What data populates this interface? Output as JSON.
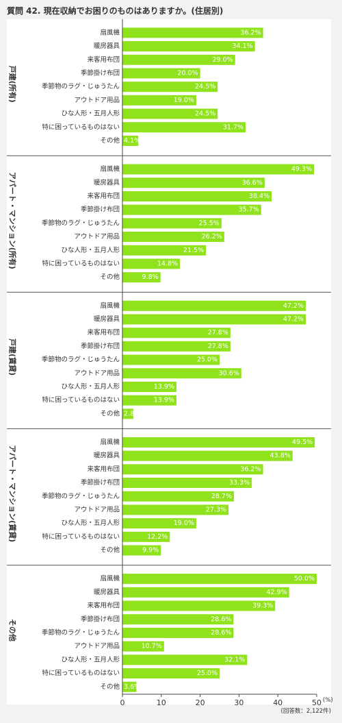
{
  "title": "質問 42. 現在収納でお困りのものはありますか。(住居別)",
  "unit_label": "(%)",
  "note": "(回答数：2,122件)",
  "colors": {
    "bar": "#8fe21c",
    "background": "#f2f2f2",
    "panel": "#ffffff",
    "divider": "#555555",
    "axis": "#444444",
    "text": "#333333",
    "value_text": "#ffffff"
  },
  "chart_data": {
    "type": "bar",
    "orientation": "horizontal",
    "categories": [
      "扇風機",
      "暖房器具",
      "来客用布団",
      "季節掛け布団",
      "季節物のラグ・じゅうたん",
      "アウトドア用品",
      "ひな人形・五月人形",
      "特に困っているものはない",
      "その他"
    ],
    "groups": [
      {
        "name": "戸建(所有)",
        "values": [
          36.2,
          34.1,
          29.0,
          20.0,
          24.5,
          19.0,
          24.5,
          31.7,
          4.1
        ],
        "labels": [
          "36.2%",
          "34.1%",
          "29.0%",
          "20.0%",
          "24.5%",
          "19.0%",
          "24.5%",
          "31.7%",
          "4.1%"
        ]
      },
      {
        "name": "アパート・マンション(所有)",
        "values": [
          49.3,
          36.6,
          38.4,
          35.7,
          25.5,
          26.2,
          21.5,
          14.8,
          9.8
        ],
        "labels": [
          "49.3%",
          "36.6%",
          "38.4%",
          "35.7%",
          "25.5%",
          "26.2%",
          "21.5%",
          "14.8%",
          "9.8%"
        ]
      },
      {
        "name": "戸建(賃貸)",
        "values": [
          47.2,
          47.2,
          27.8,
          27.8,
          25.0,
          30.6,
          13.9,
          13.9,
          2.8
        ],
        "labels": [
          "47.2%",
          "47.2%",
          "27.8%",
          "27.8%",
          "25.0%",
          "30.6%",
          "13.9%",
          "13.9%",
          "2.8%"
        ]
      },
      {
        "name": "アパート・マンション(賃貸)",
        "values": [
          49.5,
          43.8,
          36.2,
          33.3,
          28.7,
          27.3,
          19.0,
          12.2,
          9.9
        ],
        "labels": [
          "49.5%",
          "43.8%",
          "36.2%",
          "33.3%",
          "28.7%",
          "27.3%",
          "19.0%",
          "12.2%",
          "9.9%"
        ]
      },
      {
        "name": "その他",
        "values": [
          50.0,
          42.9,
          39.3,
          28.6,
          28.6,
          10.7,
          32.1,
          25.0,
          3.6
        ],
        "labels": [
          "50.0%",
          "42.9%",
          "39.3%",
          "28.6%",
          "28.6%",
          "10.7%",
          "32.1%",
          "25.0%",
          "3.6%"
        ]
      }
    ],
    "xlim": [
      0,
      50
    ],
    "xticks": [
      "0",
      "10",
      "20",
      "30",
      "40",
      "50"
    ],
    "grid": false
  }
}
